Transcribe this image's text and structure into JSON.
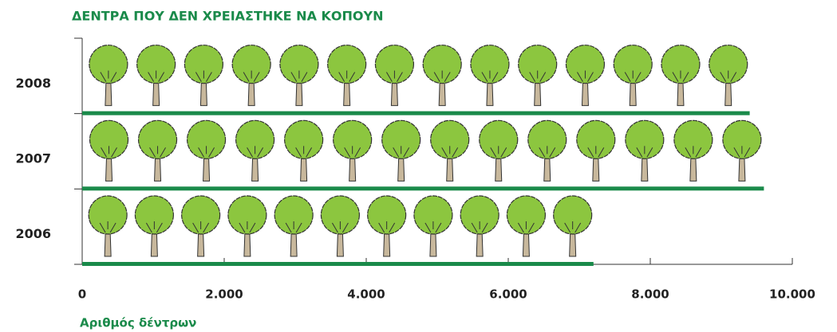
{
  "chart_data": {
    "type": "bar",
    "orientation": "horizontal",
    "title": "ΔΕΝΤΡΑ ΠΟΥ ΔΕΝ ΧΡΕΙΑΣΤΗΚΕ ΝΑ ΚΟΠΟΥΝ",
    "x_label": "Αριθμός δέντρων",
    "categories": [
      "2008",
      "2007",
      "2006"
    ],
    "values": [
      9400,
      9600,
      7200
    ],
    "color": "#1a8a4a",
    "xlim": [
      0,
      10000
    ],
    "xticks": [
      0,
      {
        "value": 2000,
        "label": "2.000"
      },
      {
        "value": 4000,
        "label": "4.000"
      },
      {
        "value": 6000,
        "label": "6.000"
      },
      {
        "value": 8000,
        "label": "8.000"
      },
      {
        "value": 10000,
        "label": "10.000"
      }
    ]
  }
}
